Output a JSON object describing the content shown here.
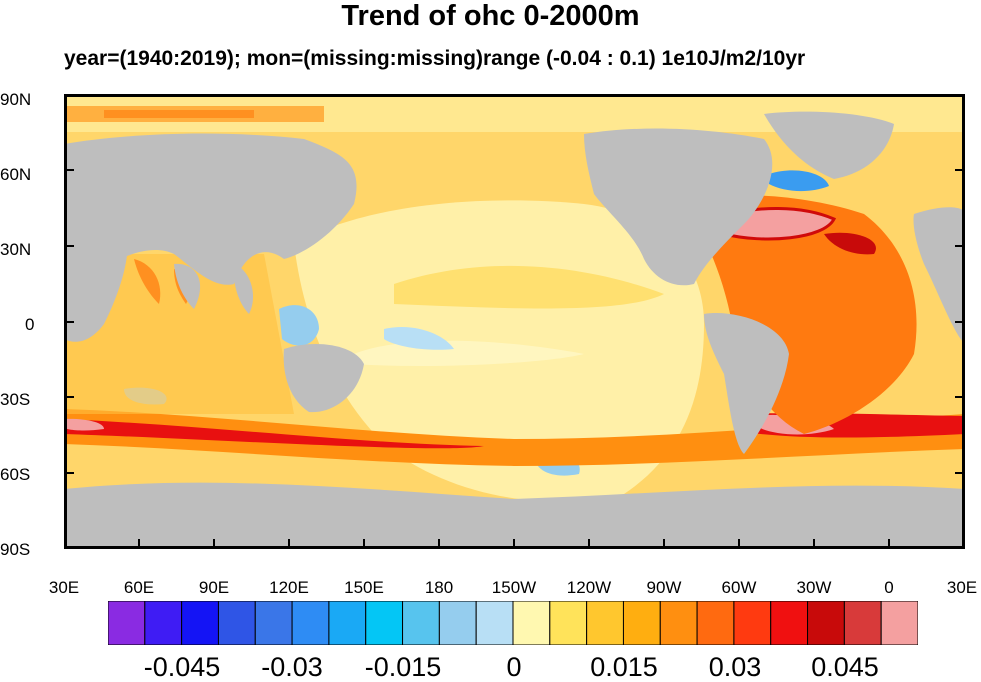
{
  "title": "Trend of ohc 0-2000m",
  "subtitle": "year=(1940:2019); mon=(missing:missing)range (-0.04 : 0.1) 1e10J/m2/10yr",
  "y_ticks": [
    "90N",
    "60N",
    "30N",
    "0",
    "30S",
    "60S",
    "90S"
  ],
  "x_ticks": [
    "30E",
    "60E",
    "90E",
    "120E",
    "150E",
    "180",
    "150W",
    "120W",
    "90W",
    "60W",
    "30W",
    "0",
    "30E"
  ],
  "colorbar": {
    "colors": [
      "#8a2be2",
      "#3f1cf4",
      "#1414f5",
      "#2f55e6",
      "#3a76e8",
      "#2e8cf4",
      "#1aa9f5",
      "#04c6f5",
      "#57c4ee",
      "#95cdee",
      "#b8dff5",
      "#fff8b0",
      "#ffe35a",
      "#ffc72e",
      "#ffae10",
      "#ff8f10",
      "#ff6a10",
      "#ff3a10",
      "#f01010",
      "#c80a0a",
      "#d83a3a",
      "#f4a0a0"
    ],
    "tick_labels": [
      "-0.045",
      "-0.03",
      "-0.015",
      "0",
      "0.015",
      "0.03",
      "0.045"
    ]
  },
  "land_color": "#bebebe",
  "map_data": {
    "projection": "cylindrical-equidistant",
    "lon_range": [
      30,
      390
    ],
    "lat_range": [
      -90,
      90
    ],
    "variable": "ocean heat content 0-2000m trend"
  }
}
